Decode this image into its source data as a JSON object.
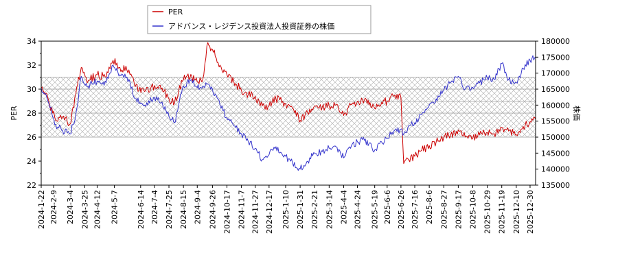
{
  "chart_data": {
    "type": "line",
    "title": "",
    "xlabel": "",
    "ylabel_left": "PER",
    "ylabel_right": "株価",
    "ylim_left": [
      22,
      34
    ],
    "ylim_right": [
      135000,
      180000
    ],
    "yticks_left": [
      22,
      24,
      26,
      28,
      30,
      32,
      34
    ],
    "yticks_right": [
      135000,
      140000,
      145000,
      150000,
      155000,
      160000,
      165000,
      170000,
      175000,
      180000
    ],
    "x_range": [
      "2024-01-22",
      "2026-01-07"
    ],
    "xticks": [
      "2024-1-22",
      "2024-2-9",
      "2024-3-4",
      "2024-3-25",
      "2024-4-12",
      "2024-5-7",
      "2024-6-14",
      "2024-7-4",
      "2024-7-25",
      "2024-8-15",
      "2024-9-4",
      "2024-9-26",
      "2024-10-17",
      "2024-11-7",
      "2024-11-27",
      "2024-12-17",
      "2025-1-10",
      "2025-1-31",
      "2025-2-21",
      "2025-3-14",
      "2025-4-4",
      "2025-4-24",
      "2025-5-19",
      "2025-6-6",
      "2025-6-26",
      "2025-7-16",
      "2025-8-6",
      "2025-8-27",
      "2025-9-17",
      "2025-10-8",
      "2025-10-29",
      "2025-11-19",
      "2025-12-10",
      "2025-12-30"
    ],
    "band_left": [
      26,
      31
    ],
    "legend": {
      "position": "top-left",
      "entries": [
        "PER",
        "アドバンス・レジデンス投資法人投資証券の株価"
      ]
    },
    "series": [
      {
        "name": "PER",
        "axis": "left",
        "color": "#cc0000",
        "points": [
          [
            "2024-01-22",
            30.1
          ],
          [
            "2024-02-02",
            29.0
          ],
          [
            "2024-02-12",
            27.4
          ],
          [
            "2024-02-22",
            27.7
          ],
          [
            "2024-03-04",
            27.1
          ],
          [
            "2024-03-12",
            29.5
          ],
          [
            "2024-03-20",
            31.8
          ],
          [
            "2024-03-30",
            30.7
          ],
          [
            "2024-04-12",
            31.2
          ],
          [
            "2024-04-25",
            31.0
          ],
          [
            "2024-05-05",
            32.4
          ],
          [
            "2024-05-15",
            31.8
          ],
          [
            "2024-05-28",
            31.6
          ],
          [
            "2024-06-06",
            30.2
          ],
          [
            "2024-06-20",
            29.8
          ],
          [
            "2024-07-04",
            30.3
          ],
          [
            "2024-07-15",
            30.1
          ],
          [
            "2024-07-25",
            29.2
          ],
          [
            "2024-08-02",
            28.8
          ],
          [
            "2024-08-08",
            29.8
          ],
          [
            "2024-08-15",
            30.8
          ],
          [
            "2024-08-27",
            31.1
          ],
          [
            "2024-09-04",
            30.6
          ],
          [
            "2024-09-12",
            30.8
          ],
          [
            "2024-09-18",
            33.6
          ],
          [
            "2024-09-26",
            33.3
          ],
          [
            "2024-10-07",
            32.0
          ],
          [
            "2024-10-17",
            31.2
          ],
          [
            "2024-10-27",
            30.6
          ],
          [
            "2024-11-07",
            29.9
          ],
          [
            "2024-11-17",
            29.6
          ],
          [
            "2024-11-27",
            29.4
          ],
          [
            "2024-12-07",
            28.6
          ],
          [
            "2024-12-17",
            28.6
          ],
          [
            "2024-12-27",
            29.2
          ],
          [
            "2025-01-10",
            28.8
          ],
          [
            "2025-01-20",
            28.4
          ],
          [
            "2025-01-31",
            27.4
          ],
          [
            "2025-02-11",
            28.0
          ],
          [
            "2025-02-21",
            28.6
          ],
          [
            "2025-03-04",
            28.5
          ],
          [
            "2025-03-14",
            28.6
          ],
          [
            "2025-03-24",
            28.7
          ],
          [
            "2025-04-04",
            27.8
          ],
          [
            "2025-04-14",
            28.7
          ],
          [
            "2025-04-24",
            29.0
          ],
          [
            "2025-05-04",
            29.1
          ],
          [
            "2025-05-19",
            28.4
          ],
          [
            "2025-05-29",
            28.9
          ],
          [
            "2025-06-06",
            29.0
          ],
          [
            "2025-06-16",
            29.4
          ],
          [
            "2025-06-26",
            29.3
          ],
          [
            "2025-06-30",
            23.8
          ],
          [
            "2025-07-06",
            24.2
          ],
          [
            "2025-07-16",
            24.4
          ],
          [
            "2025-07-26",
            24.9
          ],
          [
            "2025-08-06",
            25.3
          ],
          [
            "2025-08-16",
            25.6
          ],
          [
            "2025-08-27",
            26.0
          ],
          [
            "2025-09-06",
            26.2
          ],
          [
            "2025-09-17",
            26.6
          ],
          [
            "2025-09-27",
            26.0
          ],
          [
            "2025-10-08",
            25.9
          ],
          [
            "2025-10-18",
            26.2
          ],
          [
            "2025-10-29",
            26.4
          ],
          [
            "2025-11-08",
            26.3
          ],
          [
            "2025-11-19",
            26.8
          ],
          [
            "2025-11-29",
            26.5
          ],
          [
            "2025-12-10",
            26.2
          ],
          [
            "2025-12-20",
            26.9
          ],
          [
            "2025-12-30",
            27.3
          ],
          [
            "2026-01-07",
            27.5
          ]
        ]
      },
      {
        "name": "アドバンス・レジデンス投資法人投資証券の株価",
        "axis": "right",
        "color": "#3333cc",
        "points": [
          [
            "2024-01-22",
            165500
          ],
          [
            "2024-02-02",
            160500
          ],
          [
            "2024-02-12",
            154000
          ],
          [
            "2024-02-22",
            152000
          ],
          [
            "2024-03-04",
            151000
          ],
          [
            "2024-03-12",
            157000
          ],
          [
            "2024-03-20",
            169000
          ],
          [
            "2024-03-30",
            166000
          ],
          [
            "2024-04-12",
            167500
          ],
          [
            "2024-04-25",
            167000
          ],
          [
            "2024-05-05",
            172500
          ],
          [
            "2024-05-15",
            169500
          ],
          [
            "2024-05-28",
            168000
          ],
          [
            "2024-06-06",
            162000
          ],
          [
            "2024-06-20",
            160000
          ],
          [
            "2024-07-04",
            162500
          ],
          [
            "2024-07-15",
            161000
          ],
          [
            "2024-07-25",
            156500
          ],
          [
            "2024-08-02",
            154500
          ],
          [
            "2024-08-08",
            160000
          ],
          [
            "2024-08-15",
            166000
          ],
          [
            "2024-08-27",
            168000
          ],
          [
            "2024-09-04",
            165500
          ],
          [
            "2024-09-12",
            166000
          ],
          [
            "2024-09-18",
            166500
          ],
          [
            "2024-09-26",
            165000
          ],
          [
            "2024-10-07",
            160000
          ],
          [
            "2024-10-17",
            156000
          ],
          [
            "2024-10-27",
            153500
          ],
          [
            "2024-11-07",
            151000
          ],
          [
            "2024-11-17",
            148500
          ],
          [
            "2024-11-27",
            146500
          ],
          [
            "2024-12-07",
            143000
          ],
          [
            "2024-12-17",
            144500
          ],
          [
            "2024-12-27",
            147000
          ],
          [
            "2025-01-10",
            144000
          ],
          [
            "2025-01-20",
            142000
          ],
          [
            "2025-01-31",
            140000
          ],
          [
            "2025-02-11",
            142500
          ],
          [
            "2025-02-21",
            145000
          ],
          [
            "2025-03-04",
            145500
          ],
          [
            "2025-03-14",
            146500
          ],
          [
            "2025-03-24",
            147000
          ],
          [
            "2025-04-04",
            143500
          ],
          [
            "2025-04-14",
            146500
          ],
          [
            "2025-04-24",
            148500
          ],
          [
            "2025-05-04",
            149000
          ],
          [
            "2025-05-19",
            146000
          ],
          [
            "2025-05-29",
            148500
          ],
          [
            "2025-06-06",
            149500
          ],
          [
            "2025-06-16",
            152000
          ],
          [
            "2025-06-26",
            152500
          ],
          [
            "2025-06-30",
            151000
          ],
          [
            "2025-07-06",
            153000
          ],
          [
            "2025-07-16",
            154500
          ],
          [
            "2025-07-26",
            157000
          ],
          [
            "2025-08-06",
            160000
          ],
          [
            "2025-08-16",
            162000
          ],
          [
            "2025-08-27",
            164500
          ],
          [
            "2025-09-06",
            167000
          ],
          [
            "2025-09-17",
            169000
          ],
          [
            "2025-09-27",
            165000
          ],
          [
            "2025-10-08",
            165500
          ],
          [
            "2025-10-18",
            167000
          ],
          [
            "2025-10-29",
            168500
          ],
          [
            "2025-11-08",
            168000
          ],
          [
            "2025-11-19",
            173000
          ],
          [
            "2025-11-29",
            168000
          ],
          [
            "2025-12-10",
            167000
          ],
          [
            "2025-12-20",
            171500
          ],
          [
            "2025-12-30",
            174000
          ],
          [
            "2026-01-07",
            175000
          ]
        ]
      }
    ]
  }
}
